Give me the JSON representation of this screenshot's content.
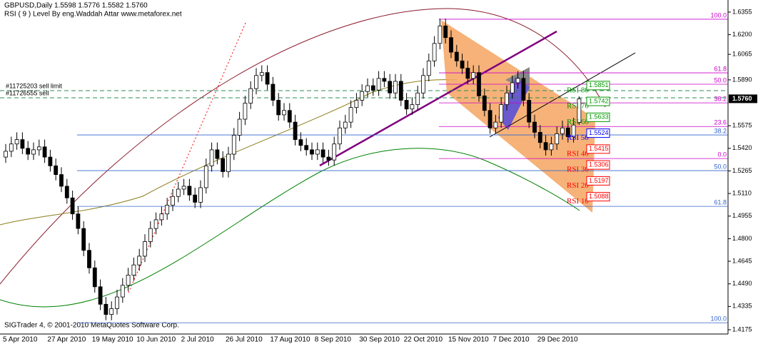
{
  "chart_data": {
    "type": "candlestick",
    "title": "GBPUSD,Daily  1.5598 1.5776 1.5582 1.5760",
    "subtitle": "RSI ( 9 ) Level By eng.Waddah Attar www.metaforex.net",
    "footer": "SIGTrader 4, © 2001-2010 MetaQuotes Software Corp.",
    "categories": [
      "5 Apr 2010",
      null,
      null,
      null,
      null,
      null,
      null,
      null,
      "27 Apr 2010",
      null,
      null,
      null,
      null,
      null,
      null,
      null,
      "19 May 2010",
      null,
      null,
      null,
      null,
      null,
      null,
      null,
      "10 Jun 2010",
      null,
      null,
      null,
      null,
      null,
      null,
      null,
      "2 Jul 2010",
      null,
      null,
      null,
      null,
      null,
      null,
      null,
      "26 Jul 2010",
      null,
      null,
      null,
      null,
      null,
      null,
      null,
      "17 Aug 2010",
      null,
      null,
      null,
      null,
      null,
      null,
      null,
      "8 Sep 2010",
      null,
      null,
      null,
      null,
      null,
      null,
      null,
      "30 Sep 2010",
      null,
      null,
      null,
      null,
      null,
      null,
      null,
      "22 Oct 2010",
      null,
      null,
      null,
      null,
      null,
      null,
      null,
      "15 Nov 2010",
      null,
      null,
      null,
      null,
      null,
      null,
      null,
      "7 Dec 2010",
      null,
      null,
      null,
      null,
      null,
      null,
      null,
      "29 Dec 2010",
      null,
      null,
      null,
      null,
      null,
      null,
      null
    ],
    "open": [
      1.536,
      1.54,
      1.545,
      1.548,
      1.542,
      1.538,
      1.541,
      1.543,
      1.536,
      1.53,
      1.524,
      1.516,
      1.508,
      1.497,
      1.487,
      1.472,
      1.46,
      1.447,
      1.435,
      1.428,
      1.432,
      1.44,
      1.448,
      1.455,
      1.462,
      1.468,
      1.478,
      1.487,
      1.493,
      1.497,
      1.503,
      1.509,
      1.514,
      1.516,
      1.51,
      1.505,
      1.515,
      1.53,
      1.541,
      1.535,
      1.526,
      1.538,
      1.551,
      1.562,
      1.573,
      1.583,
      1.592,
      1.594,
      1.586,
      1.575,
      1.565,
      1.568,
      1.56,
      1.548,
      1.544,
      1.541,
      1.538,
      1.541,
      1.536,
      1.534,
      1.545,
      1.556,
      1.56,
      1.57,
      1.575,
      1.581,
      1.585,
      1.582,
      1.59,
      1.588,
      1.58,
      1.588,
      1.575,
      1.569,
      1.572,
      1.58,
      1.592,
      1.602,
      1.614,
      1.626,
      1.618,
      1.608,
      1.602,
      1.597,
      1.59,
      1.594,
      1.578,
      1.568,
      1.556,
      1.56,
      1.572,
      1.58,
      1.587,
      1.59,
      1.575,
      1.56,
      1.553,
      1.546,
      1.541,
      1.545,
      1.552,
      1.556,
      1.55,
      1.5598
    ],
    "high": [
      1.545,
      1.55,
      1.553,
      1.553,
      1.547,
      1.546,
      1.548,
      1.548,
      1.541,
      1.535,
      1.529,
      1.521,
      1.513,
      1.502,
      1.492,
      1.477,
      1.465,
      1.452,
      1.44,
      1.437,
      1.445,
      1.453,
      1.46,
      1.467,
      1.473,
      1.483,
      1.492,
      1.498,
      1.502,
      1.508,
      1.514,
      1.519,
      1.521,
      1.521,
      1.515,
      1.52,
      1.535,
      1.546,
      1.546,
      1.54,
      1.543,
      1.556,
      1.567,
      1.578,
      1.588,
      1.597,
      1.599,
      1.599,
      1.591,
      1.58,
      1.573,
      1.573,
      1.565,
      1.553,
      1.549,
      1.546,
      1.546,
      1.546,
      1.541,
      1.55,
      1.561,
      1.565,
      1.575,
      1.58,
      1.586,
      1.59,
      1.59,
      1.595,
      1.595,
      1.593,
      1.593,
      1.593,
      1.58,
      1.577,
      1.585,
      1.597,
      1.607,
      1.619,
      1.631,
      1.631,
      1.623,
      1.613,
      1.607,
      1.602,
      1.599,
      1.599,
      1.583,
      1.573,
      1.565,
      1.577,
      1.585,
      1.592,
      1.595,
      1.595,
      1.58,
      1.565,
      1.558,
      1.551,
      1.55,
      1.557,
      1.561,
      1.561,
      1.563,
      1.5776
    ],
    "low": [
      1.532,
      1.536,
      1.541,
      1.538,
      1.534,
      1.534,
      1.537,
      1.532,
      1.526,
      1.52,
      1.512,
      1.504,
      1.493,
      1.483,
      1.468,
      1.456,
      1.443,
      1.431,
      1.424,
      1.424,
      1.428,
      1.436,
      1.444,
      1.451,
      1.458,
      1.464,
      1.474,
      1.483,
      1.489,
      1.493,
      1.499,
      1.505,
      1.51,
      1.506,
      1.501,
      1.501,
      1.511,
      1.526,
      1.531,
      1.522,
      1.522,
      1.534,
      1.547,
      1.558,
      1.569,
      1.579,
      1.588,
      1.582,
      1.571,
      1.561,
      1.561,
      1.556,
      1.544,
      1.54,
      1.537,
      1.534,
      1.534,
      1.532,
      1.53,
      1.53,
      1.541,
      1.552,
      1.556,
      1.566,
      1.571,
      1.577,
      1.578,
      1.578,
      1.584,
      1.576,
      1.576,
      1.571,
      1.565,
      1.565,
      1.568,
      1.576,
      1.588,
      1.598,
      1.61,
      1.614,
      1.604,
      1.598,
      1.593,
      1.586,
      1.586,
      1.574,
      1.564,
      1.552,
      1.552,
      1.556,
      1.568,
      1.576,
      1.583,
      1.571,
      1.556,
      1.549,
      1.542,
      1.537,
      1.537,
      1.541,
      1.548,
      1.546,
      1.546,
      1.5582
    ],
    "close": [
      1.54,
      1.545,
      1.548,
      1.542,
      1.538,
      1.541,
      1.543,
      1.536,
      1.53,
      1.524,
      1.516,
      1.508,
      1.497,
      1.487,
      1.472,
      1.46,
      1.447,
      1.435,
      1.428,
      1.432,
      1.44,
      1.448,
      1.455,
      1.462,
      1.468,
      1.478,
      1.487,
      1.493,
      1.497,
      1.503,
      1.509,
      1.514,
      1.516,
      1.51,
      1.505,
      1.515,
      1.53,
      1.541,
      1.535,
      1.526,
      1.538,
      1.551,
      1.562,
      1.573,
      1.583,
      1.592,
      1.594,
      1.586,
      1.575,
      1.565,
      1.568,
      1.56,
      1.548,
      1.544,
      1.541,
      1.538,
      1.541,
      1.536,
      1.534,
      1.545,
      1.556,
      1.56,
      1.57,
      1.575,
      1.581,
      1.585,
      1.582,
      1.59,
      1.588,
      1.58,
      1.588,
      1.575,
      1.569,
      1.572,
      1.58,
      1.592,
      1.602,
      1.614,
      1.626,
      1.618,
      1.608,
      1.602,
      1.597,
      1.59,
      1.594,
      1.578,
      1.568,
      1.556,
      1.56,
      1.572,
      1.58,
      1.587,
      1.59,
      1.575,
      1.56,
      1.553,
      1.546,
      1.541,
      1.545,
      1.552,
      1.556,
      1.55,
      1.558,
      1.576
    ],
    "ylim": [
      1.4136,
      1.6438
    ],
    "yticks": [
      1.6355,
      {
        "value": 1.62,
        "label": "1.6200"
      },
      1.6065,
      {
        "value": 1.589,
        "label": "1.5890"
      },
      1.5575,
      {
        "value": 1.542,
        "label": "1.5420"
      },
      1.5265,
      {
        "value": 1.511,
        "label": "1.5110"
      },
      1.4955,
      {
        "value": 1.48,
        "label": "1.4800"
      },
      1.4645,
      {
        "value": 1.449,
        "label": "1.4490"
      },
      1.4335,
      1.4175
    ],
    "current_price": {
      "value": 1.576,
      "label": "1.5760"
    },
    "orders": [
      {
        "label": "#11725203 sell limit",
        "value": 1.5816
      },
      {
        "label": "#11726555 sell",
        "value": 1.5767
      }
    ],
    "fib_levels": [
      {
        "label": "100.0",
        "value": 1.6306,
        "color": "#cc00cc"
      },
      {
        "label": "61.8",
        "value": 1.5938,
        "color": "#cc00cc"
      },
      {
        "label": "50.0",
        "value": 1.586,
        "color": "#cc00cc"
      },
      {
        "label": "38.2",
        "value": 1.5732,
        "color": "#cc00cc"
      },
      {
        "label": "23.6",
        "value": 1.557,
        "color": "#cc00cc"
      },
      {
        "label": "0.0",
        "value": 1.535,
        "color": "#cc00cc"
      },
      {
        "label": "38.2",
        "value": 1.5512,
        "color": "#3366cc"
      },
      {
        "label": "50.0",
        "value": 1.5267,
        "color": "#3366cc"
      },
      {
        "label": "61.8",
        "value": 1.5022,
        "color": "#3366cc"
      },
      {
        "label": "100.0",
        "value": 1.4223,
        "color": "#3366cc"
      }
    ],
    "rsi_levels": [
      {
        "label": "RSI 80",
        "value": 1.5851,
        "color": "#009900"
      },
      {
        "label": "RSI 70",
        "value": 1.5742,
        "color": "#009900"
      },
      {
        "label": "RSI 60",
        "value": 1.5633,
        "color": "#009900"
      },
      {
        "label": "RSI 50",
        "value": 1.5524,
        "color": "#0000ff"
      },
      {
        "label": "RSI 40",
        "value": 1.5415,
        "color": "#ff0000"
      },
      {
        "label": "RSI 30",
        "value": 1.5306,
        "color": "#ff0000"
      },
      {
        "label": "RSI 20",
        "value": 1.5197,
        "color": "#ff0000"
      },
      {
        "label": "RSI 10",
        "value": 1.5088,
        "color": "#ff0000"
      }
    ]
  }
}
